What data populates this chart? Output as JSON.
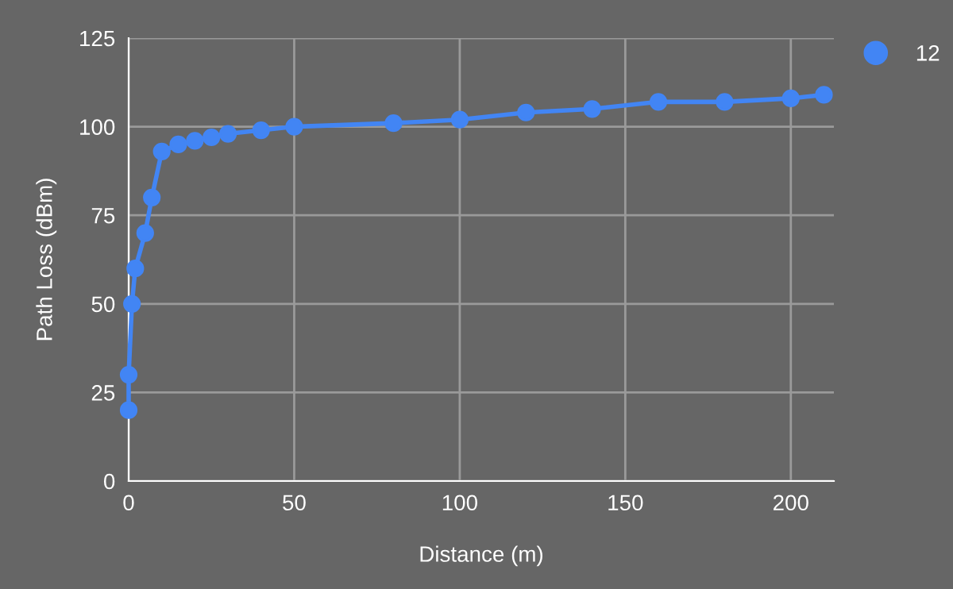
{
  "chart_data": {
    "type": "line",
    "xlabel": "Distance (m)",
    "ylabel": "Path Loss (dBm)",
    "x": [
      0,
      0,
      1,
      2,
      5,
      7,
      10,
      15,
      20,
      25,
      30,
      40,
      50,
      80,
      100,
      120,
      140,
      160,
      180,
      200,
      210
    ],
    "series": [
      {
        "name": "12",
        "color": "#4285f4",
        "values": [
          20,
          30,
          50,
          60,
          70,
          80,
          93,
          95,
          96,
          97,
          98,
          99,
          100,
          101,
          102,
          104,
          105,
          107,
          107,
          108,
          109
        ]
      }
    ],
    "xlim": [
      0,
      213
    ],
    "xticks": [
      0,
      50,
      100,
      150,
      200
    ],
    "ylim": [
      0,
      125
    ],
    "yticks": [
      0,
      25,
      50,
      75,
      100,
      125
    ],
    "grid": true,
    "legend": "top right",
    "marker": "circle",
    "line_style": "solid"
  }
}
